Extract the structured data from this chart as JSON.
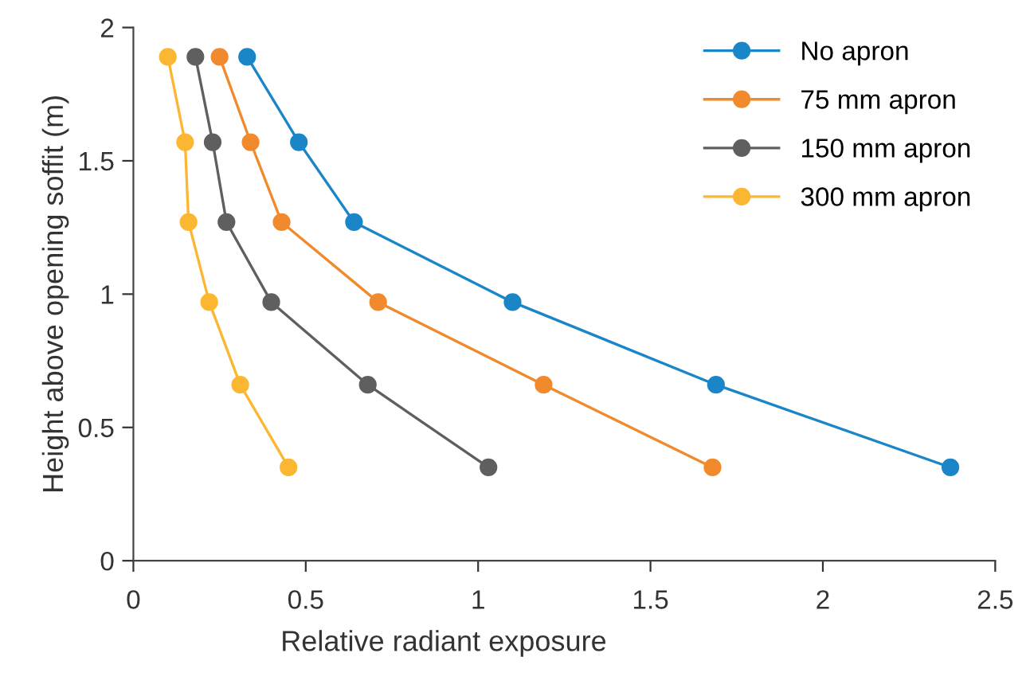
{
  "chart_data": {
    "type": "line",
    "xlabel": "Relative radiant exposure",
    "ylabel": "Height above opening soffit (m)",
    "xlim": [
      0,
      2.5
    ],
    "xticks": [
      0,
      0.5,
      1,
      1.5,
      2,
      2.5
    ],
    "ylim": [
      0,
      2
    ],
    "yticks": [
      0,
      0.5,
      1,
      1.5,
      2
    ],
    "marker": "circle",
    "legend": "top right",
    "grid": false,
    "series": [
      {
        "name": "No apron",
        "color": "#1a86c8",
        "x": [
          0.33,
          0.48,
          0.64,
          1.1,
          1.69,
          2.37
        ],
        "values": [
          1.89,
          1.57,
          1.27,
          0.97,
          0.66,
          0.35
        ]
      },
      {
        "name": "75 mm apron",
        "color": "#f08a2c",
        "x": [
          0.25,
          0.34,
          0.43,
          0.71,
          1.19,
          1.68
        ],
        "values": [
          1.89,
          1.57,
          1.27,
          0.97,
          0.66,
          0.35
        ]
      },
      {
        "name": "150 mm apron",
        "color": "#5f5f5f",
        "x": [
          0.18,
          0.23,
          0.27,
          0.4,
          0.68,
          1.03
        ],
        "values": [
          1.89,
          1.57,
          1.27,
          0.97,
          0.66,
          0.35
        ]
      },
      {
        "name": "300 mm apron",
        "color": "#fbb731",
        "x": [
          0.1,
          0.15,
          0.16,
          0.22,
          0.31,
          0.45
        ],
        "values": [
          1.89,
          1.57,
          1.27,
          0.97,
          0.66,
          0.35
        ]
      }
    ]
  }
}
